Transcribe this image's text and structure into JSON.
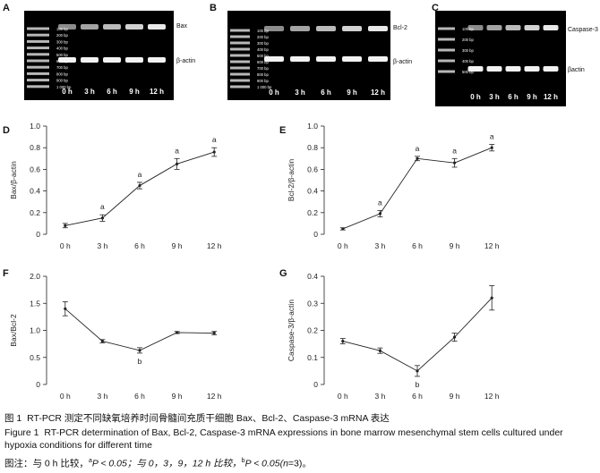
{
  "gels": [
    {
      "id": "A",
      "marker_labels": [
        "100 bp",
        "200 bp",
        "300 bp",
        "400 bp",
        "500 bp",
        "600 bp",
        "700 bp",
        "800 bp",
        "900 bp",
        "1 000 bp"
      ],
      "lanes": [
        "0 h",
        "3 h",
        "6 h",
        "9 h",
        "12 h"
      ],
      "bands": [
        "Bax",
        "β-actin"
      ]
    },
    {
      "id": "B",
      "marker_labels": [
        "100 bp",
        "200 bp",
        "300 bp",
        "400 bp",
        "500 bp",
        "600 bp",
        "700 bp",
        "800 bp",
        "900 bp",
        "1 000 bp"
      ],
      "lanes": [
        "0 h",
        "3 h",
        "6 h",
        "9 h",
        "12 h"
      ],
      "bands": [
        "Bcl-2",
        "β-actin"
      ]
    },
    {
      "id": "C",
      "marker_labels": [
        "100 bp",
        "200 bp",
        "300 bp",
        "400 bp",
        "500 bp"
      ],
      "lanes": [
        "0 h",
        "3 h",
        "6 h",
        "9 h",
        "12 h"
      ],
      "bands": [
        "Caspase-3",
        "βactin"
      ]
    }
  ],
  "chart_data": [
    {
      "id": "D",
      "type": "line",
      "categories": [
        "0 h",
        "3 h",
        "6 h",
        "9 h",
        "12 h"
      ],
      "values": [
        0.08,
        0.15,
        0.45,
        0.65,
        0.76
      ],
      "errors": [
        0.02,
        0.03,
        0.03,
        0.05,
        0.04
      ],
      "sig": [
        "",
        "a",
        "a",
        "a",
        "a"
      ],
      "ylabel": "Bax/β-actin",
      "ylim": [
        0,
        1.0
      ],
      "yticks": [
        "0",
        "0.2",
        "0.4",
        "0.6",
        "0.8",
        "1.0"
      ]
    },
    {
      "id": "E",
      "type": "line",
      "categories": [
        "0 h",
        "3 h",
        "6 h",
        "9 h",
        "12 h"
      ],
      "values": [
        0.05,
        0.19,
        0.7,
        0.66,
        0.8
      ],
      "errors": [
        0.01,
        0.03,
        0.02,
        0.04,
        0.03
      ],
      "sig": [
        "",
        "a",
        "a",
        "a",
        "a"
      ],
      "ylabel": "Bcl-2/β-actin",
      "ylim": [
        0,
        1.0
      ],
      "yticks": [
        "0",
        "0.2",
        "0.4",
        "0.6",
        "0.8",
        "1.0"
      ]
    },
    {
      "id": "F",
      "type": "line",
      "categories": [
        "0 h",
        "3 h",
        "6 h",
        "9 h",
        "12 h"
      ],
      "values": [
        1.4,
        0.8,
        0.63,
        0.96,
        0.95
      ],
      "errors": [
        0.13,
        0.03,
        0.05,
        0.02,
        0.03
      ],
      "sig": [
        "",
        "",
        "b",
        "",
        ""
      ],
      "ylabel": "Bax/Bcl-2",
      "ylim": [
        0,
        2.0
      ],
      "yticks": [
        "0",
        "0.5",
        "1.0",
        "1.5",
        "2.0"
      ]
    },
    {
      "id": "G",
      "type": "line",
      "categories": [
        "0 h",
        "3 h",
        "6 h",
        "9 h",
        "12 h"
      ],
      "values": [
        0.16,
        0.125,
        0.05,
        0.175,
        0.32
      ],
      "errors": [
        0.01,
        0.01,
        0.02,
        0.015,
        0.045
      ],
      "sig": [
        "",
        "",
        "b",
        "",
        ""
      ],
      "ylabel": "Caspase-3/β-actin",
      "ylim": [
        0,
        0.4
      ],
      "yticks": [
        "0",
        "0.1",
        "0.2",
        "0.3",
        "0.4"
      ]
    }
  ],
  "caption": {
    "line1_prefix": "图 1",
    "line1_text": "RT-PCR 测定不同缺氧培养时间骨髓间充质干细胞 Bax、Bcl-2、Caspase-3 mRNA 表达",
    "line2_prefix": "Figure 1",
    "line2_text": "RT-PCR determination of Bax, Bcl-2, Caspase-3 mRNA expressions in bone marrow mesenchymal stem cells cultured under",
    "line3": "hypoxia conditions for different time",
    "note_a": "图注：与 0 h 比较，",
    "note_b": "P < 0.05；与 0，3，9，12 h 比较，",
    "note_c": "P < 0.05(",
    "note_d": "n",
    "note_e": "=3)。",
    "sup_a": "a",
    "sup_b": "b"
  }
}
